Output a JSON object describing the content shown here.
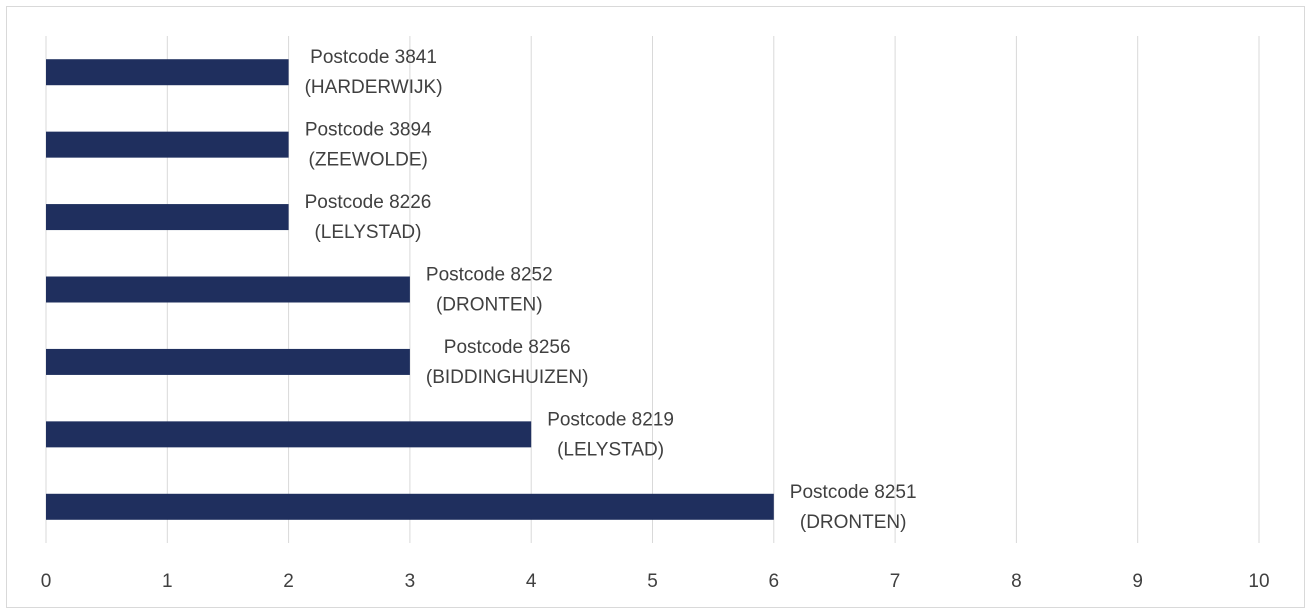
{
  "chart_data": {
    "type": "barh",
    "categories": [
      [
        "Postcode 3841",
        "(HARDERWIJK)"
      ],
      [
        "Postcode 3894",
        "(ZEEWOLDE)"
      ],
      [
        "Postcode 8226",
        "(LELYSTAD)"
      ],
      [
        "Postcode 8252",
        "(DRONTEN)"
      ],
      [
        "Postcode 8256",
        "(BIDDINGHUIZEN)"
      ],
      [
        "Postcode 8219",
        "(LELYSTAD)"
      ],
      [
        "Postcode 8251",
        "(DRONTEN)"
      ]
    ],
    "values": [
      2,
      2,
      2,
      3,
      3,
      4,
      6
    ],
    "color": "#1f2f5e",
    "xlim": [
      0,
      10
    ],
    "xticks": [
      0,
      1,
      2,
      3,
      4,
      5,
      6,
      7,
      8,
      9,
      10
    ],
    "grid": true
  }
}
